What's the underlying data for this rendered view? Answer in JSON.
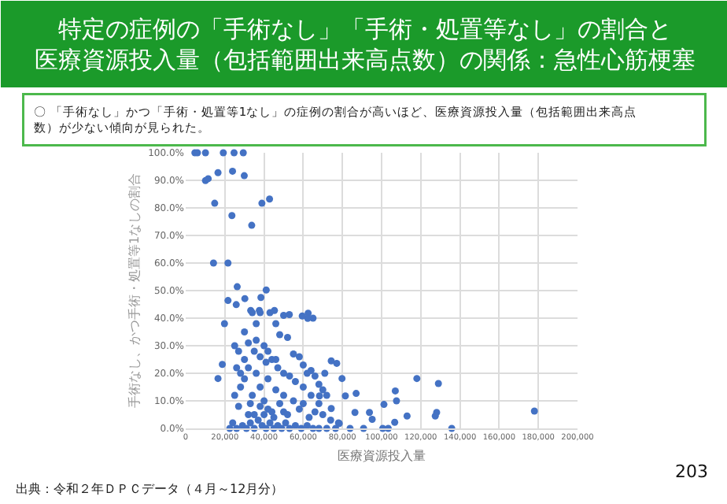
{
  "chart_data": {
    "type": "scatter",
    "title": "特定の症例の「手術なし」「手術・処置等なし」の割合と医療資源投入量（包括範囲出来高点数）の関係：急性心筋梗塞",
    "subtitle": "〇 「手術なし」かつ「手術・処置等1なし」の症例の割合が高いほど、医療資源投入量（包括範囲出来高点数）が少ない傾向が見られた。",
    "xlabel": "医療資源投入量",
    "ylabel": "手術なし、かつ手術・処置等1なしの割合",
    "annotations": [
      "出典：令和２年ＤＰＣデータ（４月～12月分）",
      "203"
    ],
    "x": [
      4700,
      6000,
      10100,
      19200,
      24700,
      29400,
      10100,
      11500,
      16500,
      23900,
      29900,
      14800,
      38900,
      42800,
      23600,
      33700,
      14200,
      21600,
      26300,
      41100,
      21600,
      30200,
      38400,
      25800,
      33200,
      37600,
      45300,
      52900,
      62500,
      65000,
      16500,
      18700,
      19800,
      22500,
      118000,
      129000,
      128100,
      127400,
      135800,
      178000,
      107600,
      107000,
      113000,
      100600,
      103400,
      106700,
      101200,
      93800,
      95200,
      86400,
      87000,
      79800,
      81500,
      74300,
      77100,
      76500,
      83900,
      90800,
      71000,
      68300,
      74300,
      78400,
      62300,
      59500,
      25000,
      27000,
      30000,
      32000,
      34000,
      36000,
      38000,
      40000,
      43000,
      46000,
      48000,
      50000,
      52000,
      55000,
      58000,
      60000,
      62000,
      64000,
      66000,
      68000,
      70000,
      72000,
      26000,
      28000,
      30000,
      32000,
      35000,
      38000,
      41000,
      44000,
      47000,
      50000,
      53000,
      56000,
      60000,
      64000,
      68000,
      25000,
      27000,
      28000,
      30000,
      32000,
      34000,
      36000,
      38000,
      40000,
      42000,
      44000,
      46000,
      48000,
      50000,
      52000,
      55000,
      58000,
      60000,
      63000,
      66000,
      70000,
      74000,
      78000,
      24000,
      26000,
      29000,
      31000,
      33000,
      35000,
      37000,
      39000,
      41000,
      43000,
      45000,
      47000,
      49000,
      51000,
      53000,
      56000,
      59000,
      62000,
      65000,
      68000,
      72000,
      35000,
      40000,
      45000,
      50000,
      38000,
      42000,
      33000,
      46000,
      36000,
      42000
    ],
    "series": [
      {
        "color": "#4472c4",
        "values": [
          100,
          100,
          100,
          100,
          100,
          100,
          89.9,
          90.6,
          92.8,
          93.3,
          91.7,
          81.7,
          81.7,
          83.2,
          77.2,
          73.7,
          60,
          60,
          51.4,
          50.2,
          46.4,
          47.1,
          47.5,
          44.9,
          42.8,
          42.8,
          42.8,
          41.3,
          41.8,
          40,
          18.1,
          23.2,
          38,
          0,
          18.1,
          16.3,
          5.8,
          4.5,
          0,
          6.3,
          10,
          13.6,
          4.5,
          0,
          0,
          2.2,
          8.7,
          5.8,
          3.3,
          5.8,
          12.7,
          18.1,
          11.8,
          24.5,
          23.6,
          0,
          0,
          0,
          20,
          11.8,
          7.2,
          1.8,
          39.9,
          40.8,
          30,
          28,
          35,
          31,
          42,
          38,
          42,
          30,
          42,
          38,
          34,
          41,
          33,
          27,
          26,
          23,
          20,
          21,
          19,
          16,
          14,
          12,
          22,
          20,
          25,
          22,
          28,
          26,
          24,
          25,
          22,
          20,
          19,
          17,
          15,
          12,
          9,
          12,
          8,
          15,
          18,
          5,
          12,
          20,
          15,
          10,
          18,
          6,
          14,
          9,
          12,
          5,
          10,
          7,
          9,
          4,
          6,
          5,
          3,
          2,
          2,
          0,
          1,
          0,
          2,
          0,
          3,
          1,
          0,
          2,
          0,
          1,
          0,
          2,
          0,
          1,
          0,
          1,
          0,
          0,
          0,
          5,
          5,
          4,
          6,
          8,
          7,
          9,
          25,
          32,
          28
        ]
      }
    ],
    "xlim": [
      0,
      200000
    ],
    "xticks": [
      {
        "value": 0,
        "label": "0"
      },
      {
        "value": 20000,
        "label": "20,000"
      },
      {
        "value": 40000,
        "label": "40,000"
      },
      {
        "value": 60000,
        "label": "60,000"
      },
      {
        "value": 80000,
        "label": "80,000"
      },
      {
        "value": 100000,
        "label": "100,000"
      },
      {
        "value": 120000,
        "label": "120,000"
      },
      {
        "value": 140000,
        "label": "140,000"
      },
      {
        "value": 160000,
        "label": "160,000"
      },
      {
        "value": 180000,
        "label": "180,000"
      },
      {
        "value": 200000,
        "label": "200,000"
      }
    ],
    "ylim": [
      0,
      100
    ],
    "yticks": [
      {
        "value": 0,
        "label": "0.0%"
      },
      {
        "value": 10,
        "label": "10.0%"
      },
      {
        "value": 20,
        "label": "20.0%"
      },
      {
        "value": 30,
        "label": "30.0%"
      },
      {
        "value": 40,
        "label": "40.0%"
      },
      {
        "value": 50,
        "label": "50.0%"
      },
      {
        "value": 60,
        "label": "60.0%"
      },
      {
        "value": 70,
        "label": "70.0%"
      },
      {
        "value": 80,
        "label": "80.0%"
      },
      {
        "value": 90,
        "label": "90.0%"
      },
      {
        "value": 100,
        "label": "100.0%"
      }
    ],
    "grid": true,
    "marker": "circle"
  }
}
